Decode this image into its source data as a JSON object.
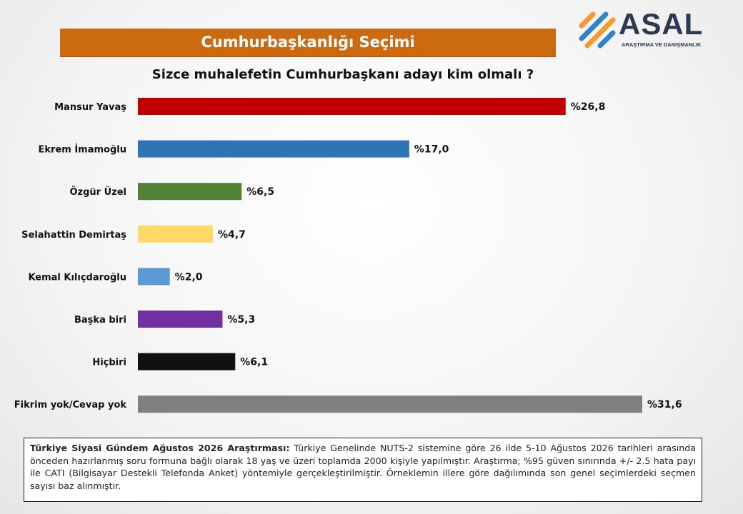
{
  "banner_title": "Cumhurbaşkanlığı Seçimi",
  "logo": {
    "name": "ASAL",
    "subtitle": "ARAŞTIRMA VE DANIŞMANLIK"
  },
  "colors": {
    "banner": "#cc6a12",
    "logo_orange": "#f59a2b",
    "logo_blue": "#2e86c8"
  },
  "chart_data": {
    "type": "bar",
    "orientation": "horizontal",
    "title": "Sizce muhalefetin Cumhurbaşkanı adayı kim olmalı ?",
    "categories": [
      "Mansur Yavaş",
      "Ekrem İmamoğlu",
      "Özgür Üzel",
      "Selahattin Demirtaş",
      "Kemal Kılıçdaroğlu",
      "Başka biri",
      "Hiçbiri",
      "Fikrim yok/Cevap yok"
    ],
    "values": [
      26.8,
      17.0,
      6.5,
      4.7,
      2.0,
      5.3,
      6.1,
      31.6
    ],
    "value_labels": [
      "%26,8",
      "%17,0",
      "%6,5",
      "%4,7",
      "%2,0",
      "%5,3",
      "%6,1",
      "%31,6"
    ],
    "bar_colors": [
      "#c00000",
      "#2e75b6",
      "#548235",
      "#ffd966",
      "#5b9bd5",
      "#7030a0",
      "#111111",
      "#808080"
    ],
    "xlim": [
      0,
      31.6
    ],
    "grid": false,
    "legend": "none"
  },
  "note": {
    "title": "Türkiye Siyasi Gündem Ağustos 2026 Araştırması:",
    "body": " Türkiye Genelinde NUTS-2 sistemine göre 26 ilde 5-10 Ağustos 2026 tarihleri arasında önceden hazırlanmış soru formuna bağlı olarak 18 yaş ve üzeri toplamda 2000 kişiyle yapılmıştır. Araştırma; %95 güven sınırında +/- 2.5 hata payı ile CATI (Bilgisayar Destekli Telefonda Anket) yöntemiyle gerçekleştirilmiştir. Örneklemin illere göre dağılımında son genel seçimlerdeki seçmen sayısı baz alınmıştır."
  }
}
